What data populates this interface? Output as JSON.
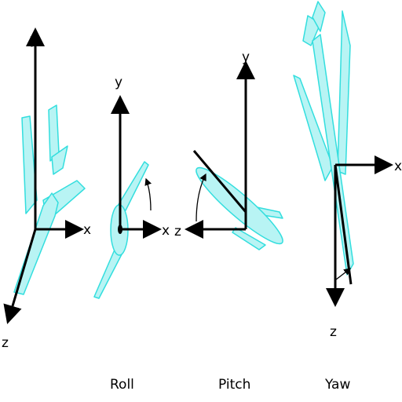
{
  "axes": {
    "x": "x",
    "y": "y",
    "z": "z"
  },
  "panels": [
    {
      "caption": ""
    },
    {
      "caption": "Roll"
    },
    {
      "caption": "Pitch"
    },
    {
      "caption": "Yaw"
    }
  ],
  "colors": {
    "plane_fill": "#b8f4f4",
    "plane_stroke": "#33dede",
    "axis": "#000000"
  }
}
